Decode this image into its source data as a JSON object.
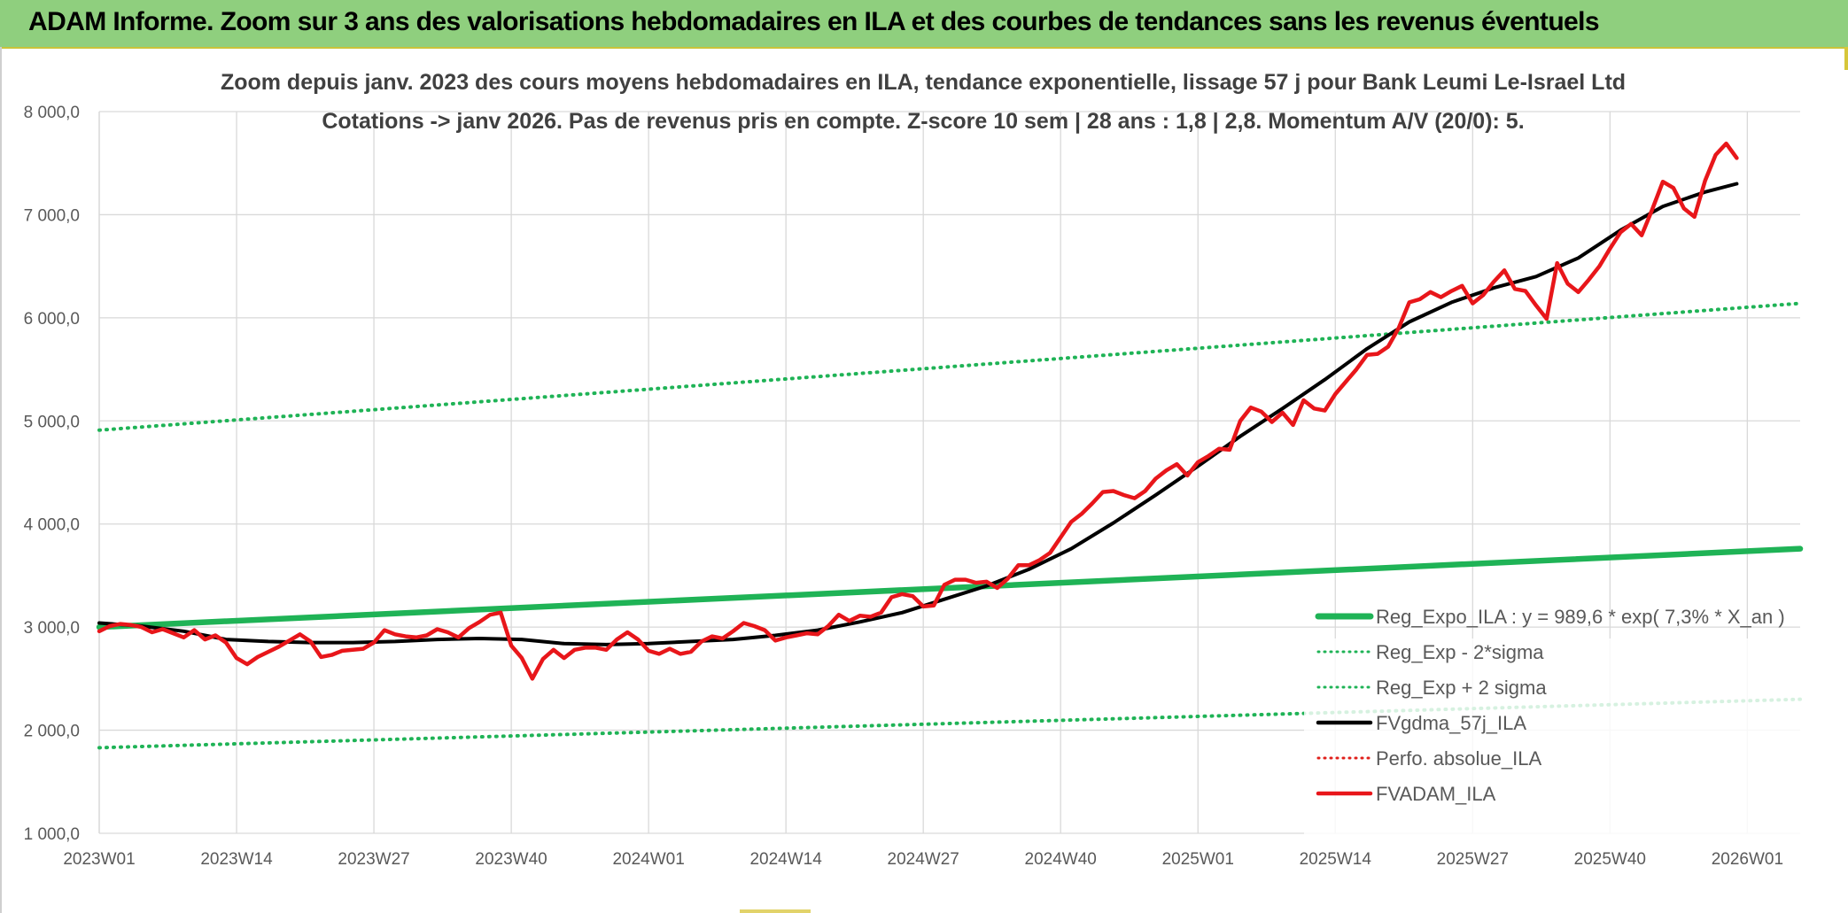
{
  "banner": {
    "title": "ADAM Informe. Zoom sur 3 ans des valorisations hebdomadaires en ILA et des courbes de tendances sans les revenus éventuels"
  },
  "colors": {
    "reg_expo": "#1fb356",
    "sigma": "#1fb356",
    "fvgdma": "#000000",
    "perfo": "#e0201b",
    "fvadam": "#e8161a",
    "banner": "#8fcf7e"
  },
  "chart_data": {
    "type": "line",
    "title_line1": "Zoom depuis janv. 2023 des cours moyens hebdomadaires en ILA, tendance exponentielle, lissage 57 j pour Bank Leumi Le-Israel Ltd",
    "title_line2": "Cotations -> janv 2026. Pas de revenus pris en compte. Z-score 10 sem | 28 ans : 1,8 | 2,8. Momentum A/V (20/0): 5.",
    "xlabel": "",
    "ylabel": "",
    "ylim": [
      1000,
      8000
    ],
    "y_ticks": [
      "1 000,0",
      "2 000,0",
      "3 000,0",
      "4 000,0",
      "5 000,0",
      "6 000,0",
      "7 000,0",
      "8 000,0"
    ],
    "x_ticks": [
      "2023W01",
      "2023W14",
      "2023W27",
      "2023W40",
      "2024W01",
      "2024W14",
      "2024W27",
      "2024W40",
      "2025W01",
      "2025W14",
      "2025W27",
      "2025W40",
      "2026W01"
    ],
    "x_range_weeks": [
      0,
      161
    ],
    "legend": [
      {
        "label": "Reg_Expo_ILA : y = 989,6 * exp( 7,3% *  X_an )",
        "style": "solid-thick",
        "color": "#1fb356"
      },
      {
        "label": "Reg_Exp - 2*sigma",
        "style": "dotted",
        "color": "#1fb356"
      },
      {
        "label": "Reg_Exp + 2 sigma",
        "style": "dotted",
        "color": "#1fb356"
      },
      {
        "label": "FVgdma_57j_ILA",
        "style": "solid",
        "color": "#000000"
      },
      {
        "label": "Perfo. absolue_ILA",
        "style": "dotted",
        "color": "#e0201b"
      },
      {
        "label": "FVADAM_ILA",
        "style": "solid",
        "color": "#e8161a"
      }
    ],
    "series": [
      {
        "name": "Reg_Expo_ILA",
        "start": [
          0,
          3000
        ],
        "end": [
          161,
          3760
        ]
      },
      {
        "name": "Reg_Exp - 2*sigma",
        "start": [
          0,
          1830
        ],
        "end": [
          161,
          2300
        ]
      },
      {
        "name": "Reg_Exp + 2 sigma",
        "start": [
          0,
          4910
        ],
        "end": [
          161,
          6140
        ]
      },
      {
        "name": "FVgdma_57j_ILA",
        "points": [
          [
            0,
            3040
          ],
          [
            4,
            3010
          ],
          [
            8,
            2960
          ],
          [
            12,
            2880
          ],
          [
            16,
            2860
          ],
          [
            20,
            2850
          ],
          [
            24,
            2850
          ],
          [
            28,
            2860
          ],
          [
            32,
            2880
          ],
          [
            36,
            2890
          ],
          [
            40,
            2880
          ],
          [
            44,
            2840
          ],
          [
            48,
            2830
          ],
          [
            52,
            2840
          ],
          [
            56,
            2860
          ],
          [
            60,
            2880
          ],
          [
            64,
            2920
          ],
          [
            68,
            2970
          ],
          [
            72,
            3050
          ],
          [
            76,
            3140
          ],
          [
            80,
            3270
          ],
          [
            84,
            3400
          ],
          [
            88,
            3560
          ],
          [
            92,
            3760
          ],
          [
            96,
            4010
          ],
          [
            100,
            4280
          ],
          [
            104,
            4560
          ],
          [
            108,
            4850
          ],
          [
            112,
            5120
          ],
          [
            116,
            5400
          ],
          [
            120,
            5700
          ],
          [
            124,
            5960
          ],
          [
            128,
            6150
          ],
          [
            132,
            6290
          ],
          [
            136,
            6400
          ],
          [
            140,
            6580
          ],
          [
            144,
            6850
          ],
          [
            148,
            7080
          ],
          [
            152,
            7220
          ],
          [
            155,
            7300
          ]
        ]
      },
      {
        "name": "FVADAM_ILA",
        "points": [
          [
            0,
            2960
          ],
          [
            1,
            3010
          ],
          [
            2,
            3030
          ],
          [
            3,
            3020
          ],
          [
            4,
            3000
          ],
          [
            5,
            2950
          ],
          [
            6,
            2980
          ],
          [
            7,
            2940
          ],
          [
            8,
            2900
          ],
          [
            9,
            2970
          ],
          [
            10,
            2880
          ],
          [
            11,
            2920
          ],
          [
            12,
            2850
          ],
          [
            13,
            2700
          ],
          [
            14,
            2640
          ],
          [
            15,
            2710
          ],
          [
            16,
            2760
          ],
          [
            17,
            2810
          ],
          [
            18,
            2870
          ],
          [
            19,
            2930
          ],
          [
            20,
            2860
          ],
          [
            21,
            2710
          ],
          [
            22,
            2730
          ],
          [
            23,
            2770
          ],
          [
            24,
            2780
          ],
          [
            25,
            2790
          ],
          [
            26,
            2850
          ],
          [
            27,
            2970
          ],
          [
            28,
            2930
          ],
          [
            29,
            2910
          ],
          [
            30,
            2900
          ],
          [
            31,
            2920
          ],
          [
            32,
            2980
          ],
          [
            33,
            2950
          ],
          [
            34,
            2900
          ],
          [
            35,
            2990
          ],
          [
            36,
            3050
          ],
          [
            37,
            3120
          ],
          [
            38,
            3140
          ],
          [
            39,
            2820
          ],
          [
            40,
            2700
          ],
          [
            41,
            2500
          ],
          [
            42,
            2690
          ],
          [
            43,
            2780
          ],
          [
            44,
            2700
          ],
          [
            45,
            2780
          ],
          [
            46,
            2800
          ],
          [
            47,
            2800
          ],
          [
            48,
            2780
          ],
          [
            49,
            2880
          ],
          [
            50,
            2950
          ],
          [
            51,
            2880
          ],
          [
            52,
            2770
          ],
          [
            53,
            2740
          ],
          [
            54,
            2790
          ],
          [
            55,
            2740
          ],
          [
            56,
            2760
          ],
          [
            57,
            2860
          ],
          [
            58,
            2910
          ],
          [
            59,
            2890
          ],
          [
            60,
            2960
          ],
          [
            61,
            3040
          ],
          [
            62,
            3010
          ],
          [
            63,
            2970
          ],
          [
            64,
            2870
          ],
          [
            65,
            2900
          ],
          [
            66,
            2920
          ],
          [
            67,
            2940
          ],
          [
            68,
            2930
          ],
          [
            69,
            3010
          ],
          [
            70,
            3120
          ],
          [
            71,
            3060
          ],
          [
            72,
            3110
          ],
          [
            73,
            3100
          ],
          [
            74,
            3140
          ],
          [
            75,
            3290
          ],
          [
            76,
            3320
          ],
          [
            77,
            3300
          ],
          [
            78,
            3200
          ],
          [
            79,
            3210
          ],
          [
            80,
            3410
          ],
          [
            81,
            3460
          ],
          [
            82,
            3460
          ],
          [
            83,
            3430
          ],
          [
            84,
            3440
          ],
          [
            85,
            3380
          ],
          [
            86,
            3470
          ],
          [
            87,
            3600
          ],
          [
            88,
            3600
          ],
          [
            89,
            3650
          ],
          [
            90,
            3720
          ],
          [
            91,
            3870
          ],
          [
            92,
            4020
          ],
          [
            93,
            4100
          ],
          [
            94,
            4200
          ],
          [
            95,
            4310
          ],
          [
            96,
            4320
          ],
          [
            97,
            4280
          ],
          [
            98,
            4250
          ],
          [
            99,
            4320
          ],
          [
            100,
            4440
          ],
          [
            101,
            4520
          ],
          [
            102,
            4580
          ],
          [
            103,
            4470
          ],
          [
            104,
            4600
          ],
          [
            105,
            4660
          ],
          [
            106,
            4730
          ],
          [
            107,
            4720
          ],
          [
            108,
            5000
          ],
          [
            109,
            5130
          ],
          [
            110,
            5090
          ],
          [
            111,
            4990
          ],
          [
            112,
            5080
          ],
          [
            113,
            4960
          ],
          [
            114,
            5200
          ],
          [
            115,
            5120
          ],
          [
            116,
            5100
          ],
          [
            117,
            5260
          ],
          [
            118,
            5380
          ],
          [
            119,
            5500
          ],
          [
            120,
            5640
          ],
          [
            121,
            5650
          ],
          [
            122,
            5720
          ],
          [
            123,
            5900
          ],
          [
            124,
            6150
          ],
          [
            125,
            6180
          ],
          [
            126,
            6250
          ],
          [
            127,
            6200
          ],
          [
            128,
            6260
          ],
          [
            129,
            6310
          ],
          [
            130,
            6140
          ],
          [
            131,
            6220
          ],
          [
            132,
            6350
          ],
          [
            133,
            6460
          ],
          [
            134,
            6280
          ],
          [
            135,
            6260
          ],
          [
            136,
            6120
          ],
          [
            137,
            5990
          ],
          [
            138,
            6530
          ],
          [
            139,
            6330
          ],
          [
            140,
            6250
          ],
          [
            141,
            6370
          ],
          [
            142,
            6500
          ],
          [
            143,
            6670
          ],
          [
            144,
            6830
          ],
          [
            145,
            6910
          ],
          [
            146,
            6800
          ],
          [
            147,
            7050
          ],
          [
            148,
            7320
          ],
          [
            149,
            7260
          ],
          [
            150,
            7060
          ],
          [
            151,
            6980
          ],
          [
            152,
            7330
          ],
          [
            153,
            7580
          ],
          [
            154,
            7690
          ],
          [
            155,
            7550
          ]
        ]
      }
    ]
  }
}
